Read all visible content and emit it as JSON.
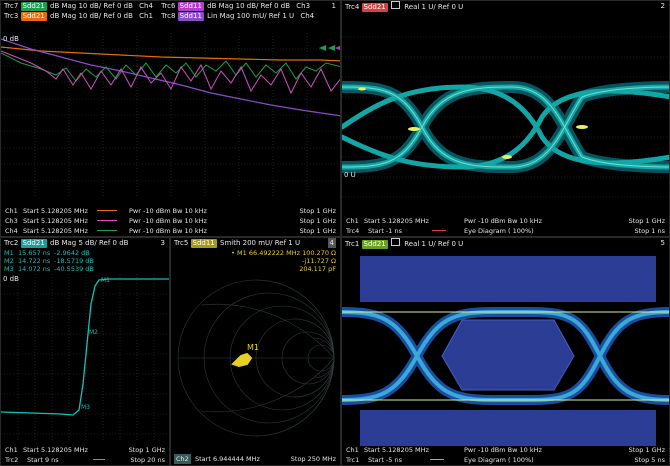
{
  "colors": {
    "trc7": "#1e9e50",
    "trc3": "#e86a10",
    "trc6": "#b040c8",
    "trc8": "#8a4cc8",
    "trc4": "#d84040",
    "trc2": "#15c0b8",
    "trc5": "#d4c210",
    "trc1": "#8acc28",
    "screen": "#000000",
    "grid": "#2b3b3b"
  },
  "pane1": {
    "number": "1",
    "row1": {
      "trc_a": "Trc7",
      "sdd_a": "Sdd21",
      "fmt_a": "dB Mag  10 dB/ Ref 0 dB",
      "ch_a": "Ch4",
      "trc_b": "Trc6",
      "sdd_b": "Sdd11",
      "fmt_b": "dB Mag  10 dB/ Ref 0 dB",
      "ch_b": "Ch3"
    },
    "row2": {
      "trc_a": "Trc3",
      "sdd_a": "Sdd21",
      "fmt_a": "dB Mag  10 dB/ Ref 0 dB",
      "ch_a": "Ch1",
      "trc_b": "Trc8",
      "sdd_b": "Sdd11",
      "fmt_b": "Lin Mag  100 mU/ Ref 1 U",
      "ch_b": "Ch4"
    },
    "ref_label": "0 dB",
    "footer": [
      {
        "ch": "Ch1",
        "start": "Start  5.128205 MHz",
        "pwr": "Pwr  -10 dBm  Bw  10 kHz",
        "stop": "Stop  1 GHz"
      },
      {
        "ch": "Ch3",
        "start": "Start  5.128205 MHz",
        "pwr": "Pwr  -10 dBm  Bw  10 kHz",
        "stop": "Stop  1 GHz"
      },
      {
        "ch": "Ch4",
        "start": "Start  5.128205 MHz",
        "pwr": "Pwr  -10 dBm  Bw  10 kHz",
        "stop": "Stop  1 GHz"
      }
    ]
  },
  "pane2": {
    "number": "2",
    "trc": "Trc4",
    "sdd": "Sdd21",
    "fmt": "Real  1 U/ Ref 0 U",
    "ref_label": "0 U",
    "footer": [
      {
        "ch": "Ch1",
        "start": "Start  5.128205 MHz",
        "mid": "Pwr  -10 dBm  Bw  10 kHz",
        "stop": "Stop  1 GHz"
      },
      {
        "ch": "Trc4",
        "start": "Start  -1 ns",
        "mid": "Eye Diagram ( 100%)",
        "stop": "Stop  1 ns"
      }
    ]
  },
  "pane3": {
    "number": "3",
    "trc": "Trc2",
    "sdd": "Sdd21",
    "fmt": "dB Mag  5 dB/ Ref 0 dB",
    "ref_label": "0 dB",
    "markers": [
      {
        "name": "M1",
        "x": "15.657  ns",
        "y": "-2.9642  dB"
      },
      {
        "name": "M2",
        "x": "14.722  ns",
        "y": "-18.5719  dB"
      },
      {
        "name": "M3",
        "x": "14.072  ns",
        "y": "-40.5539  dB"
      }
    ],
    "footer": [
      {
        "ch": "Ch1",
        "start": "Start  5.128205 MHz",
        "stop": "Stop  1 GHz"
      },
      {
        "ch": "Trc2",
        "start": "Start  9 ns",
        "stop": "Stop  20 ns"
      }
    ]
  },
  "pane4": {
    "number": "4",
    "trc": "Trc5",
    "sdd": "Sdd11",
    "fmt": "Smith  200 mU/ Ref 1 U",
    "marker": {
      "label": "• M1",
      "freq": "66.492222  MHz",
      "r": "100.270  Ω",
      "x": "-j11.727  Ω",
      "c": "204.117  pF"
    },
    "marker_tag": "M1",
    "footer": {
      "ch": "Ch2",
      "start": "Start  6.944444 MHz",
      "stop": "Stop  250 MHz"
    }
  },
  "pane5": {
    "number": "5",
    "trc": "Trc1",
    "sdd": "Sdd21",
    "fmt": "Real  1 U/ Ref 0 U",
    "footer": [
      {
        "ch": "Ch1",
        "start": "Start  5.128205 MHz",
        "mid": "Pwr  -10 dBm  Bw  10 kHz",
        "stop": "Stop  1 GHz"
      },
      {
        "ch": "Trc1",
        "start": "Start  -5 ns",
        "mid": "Eye Diagram ( 100%)",
        "stop": "Stop  5 ns"
      }
    ]
  }
}
